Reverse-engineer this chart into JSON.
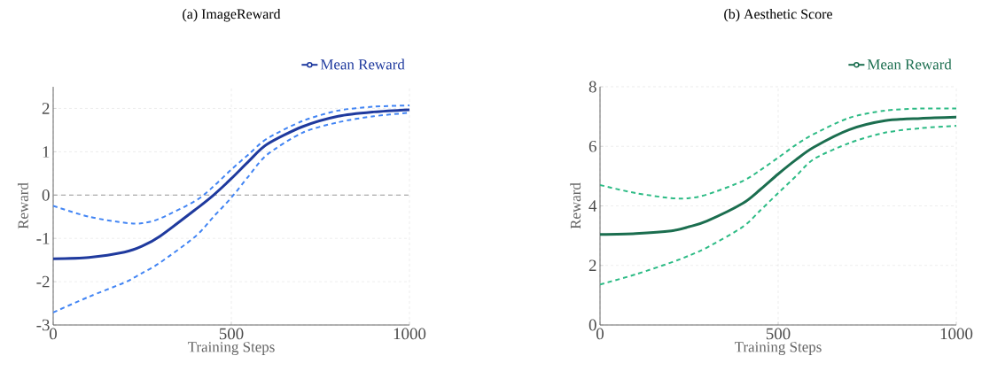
{
  "chart_data": [
    {
      "type": "line",
      "title": "(a) ImageReward",
      "xlabel": "Training Steps",
      "ylabel": "Reward",
      "x": [
        0,
        100,
        200,
        250,
        300,
        400,
        450,
        500,
        550,
        600,
        700,
        800,
        900,
        1000
      ],
      "series": [
        {
          "name": "Mean Reward",
          "color": "#1f3a9e",
          "line_style": "solid",
          "values": [
            -1.47,
            -1.44,
            -1.32,
            -1.18,
            -0.95,
            -0.33,
            0.0,
            0.38,
            0.79,
            1.17,
            1.58,
            1.82,
            1.92,
            1.97
          ]
        },
        {
          "color": "#4285f4",
          "line_style": "dashed",
          "values": [
            -0.25,
            -0.5,
            -0.64,
            -0.65,
            -0.54,
            -0.13,
            0.2,
            0.59,
            0.95,
            1.3,
            1.71,
            1.95,
            2.04,
            2.07
          ]
        },
        {
          "color": "#4285f4",
          "line_style": "dashed",
          "values": [
            -2.71,
            -2.35,
            -2.02,
            -1.8,
            -1.56,
            -0.95,
            -0.5,
            -0.06,
            0.45,
            0.93,
            1.44,
            1.68,
            1.82,
            1.9
          ]
        }
      ],
      "xlim": [
        0,
        1000
      ],
      "xticks": [
        0,
        500,
        1000
      ],
      "ylim": [
        -3,
        2.5
      ],
      "yticks": [
        -3,
        -2,
        -1,
        0,
        1,
        2
      ],
      "ref_lines": [
        {
          "axis": "y",
          "value": 0,
          "color": "#999999",
          "line_style": "dashed"
        }
      ],
      "grid": true,
      "legend": "top right"
    },
    {
      "type": "line",
      "title": "(b) Aesthetic Score",
      "xlabel": "Training Steps",
      "ylabel": "Reward",
      "x": [
        0,
        100,
        200,
        250,
        300,
        400,
        450,
        500,
        550,
        600,
        700,
        800,
        900,
        1000
      ],
      "series": [
        {
          "name": "Mean Reward",
          "color": "#1b6e4f",
          "line_style": "solid",
          "values": [
            3.04,
            3.07,
            3.16,
            3.3,
            3.49,
            4.08,
            4.55,
            5.07,
            5.55,
            5.97,
            6.56,
            6.86,
            6.94,
            6.98
          ]
        },
        {
          "color": "#2dbb85",
          "line_style": "dashed",
          "values": [
            4.7,
            4.43,
            4.26,
            4.26,
            4.38,
            4.83,
            5.2,
            5.62,
            6.05,
            6.41,
            6.96,
            7.2,
            7.27,
            7.27
          ]
        },
        {
          "color": "#2dbb85",
          "line_style": "dashed",
          "values": [
            1.36,
            1.7,
            2.1,
            2.33,
            2.6,
            3.29,
            3.85,
            4.43,
            5.0,
            5.57,
            6.11,
            6.46,
            6.61,
            6.69
          ]
        }
      ],
      "xlim": [
        0,
        1000
      ],
      "xticks": [
        0,
        500,
        1000
      ],
      "ylim": [
        0,
        8
      ],
      "yticks": [
        0,
        2,
        4,
        6,
        8
      ],
      "grid": true,
      "legend": "top right"
    }
  ]
}
